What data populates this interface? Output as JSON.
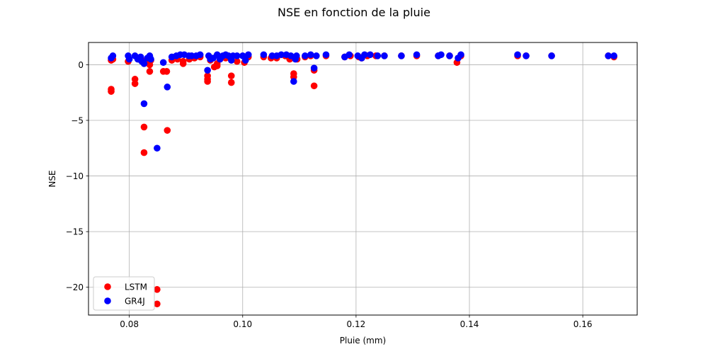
{
  "chart_data": {
    "type": "scatter",
    "title": "NSE en fonction de la pluie",
    "xlabel": "Pluie (mm)",
    "ylabel": "NSE",
    "xlim": [
      0.0728,
      0.1696
    ],
    "ylim": [
      -22.5,
      2.0
    ],
    "xticks": [
      0.08,
      0.1,
      0.12,
      0.14,
      0.16
    ],
    "xtick_labels": [
      "0.08",
      "0.10",
      "0.12",
      "0.14",
      "0.16"
    ],
    "yticks": [
      -20,
      -15,
      -10,
      -5,
      0
    ],
    "ytick_labels": [
      "−20",
      "−15",
      "−10",
      "−5",
      "0"
    ],
    "grid": true,
    "legend_position": "lower-left",
    "series": [
      {
        "name": "LSTM",
        "color": "#ff0000",
        "points": [
          [
            0.0768,
            0.4
          ],
          [
            0.0768,
            -2.2
          ],
          [
            0.0768,
            -2.4
          ],
          [
            0.0771,
            0.5
          ],
          [
            0.0798,
            0.3
          ],
          [
            0.081,
            -1.3
          ],
          [
            0.081,
            -1.7
          ],
          [
            0.0816,
            0.5
          ],
          [
            0.0822,
            0.4
          ],
          [
            0.0826,
            -5.6
          ],
          [
            0.0826,
            -7.9
          ],
          [
            0.0832,
            0.3
          ],
          [
            0.0836,
            0.0
          ],
          [
            0.0836,
            -0.6
          ],
          [
            0.0838,
            0.4
          ],
          [
            0.0849,
            -20.2
          ],
          [
            0.0849,
            -21.5
          ],
          [
            0.086,
            -0.6
          ],
          [
            0.0866,
            -0.6
          ],
          [
            0.0867,
            -5.9
          ],
          [
            0.0875,
            0.4
          ],
          [
            0.0885,
            0.5
          ],
          [
            0.0895,
            0.1
          ],
          [
            0.0895,
            0.3
          ],
          [
            0.0906,
            0.5
          ],
          [
            0.0915,
            0.6
          ],
          [
            0.0925,
            0.7
          ],
          [
            0.0938,
            -1.0
          ],
          [
            0.0938,
            -1.3
          ],
          [
            0.0938,
            -1.5
          ],
          [
            0.0943,
            0.4
          ],
          [
            0.095,
            -0.2
          ],
          [
            0.0955,
            0.1
          ],
          [
            0.0955,
            -0.1
          ],
          [
            0.096,
            0.5
          ],
          [
            0.097,
            0.6
          ],
          [
            0.098,
            -1.0
          ],
          [
            0.098,
            -1.6
          ],
          [
            0.099,
            0.3
          ],
          [
            0.1003,
            0.2
          ],
          [
            0.101,
            0.7
          ],
          [
            0.1037,
            0.7
          ],
          [
            0.105,
            0.6
          ],
          [
            0.106,
            0.6
          ],
          [
            0.1075,
            0.8
          ],
          [
            0.1083,
            0.5
          ],
          [
            0.109,
            -0.8
          ],
          [
            0.109,
            -1.1
          ],
          [
            0.1096,
            0.5
          ],
          [
            0.111,
            0.7
          ],
          [
            0.112,
            0.8
          ],
          [
            0.1126,
            -0.5
          ],
          [
            0.1126,
            -1.9
          ],
          [
            0.1147,
            0.8
          ],
          [
            0.118,
            0.7
          ],
          [
            0.119,
            0.8
          ],
          [
            0.1205,
            0.7
          ],
          [
            0.121,
            0.6
          ],
          [
            0.122,
            0.8
          ],
          [
            0.1235,
            0.8
          ],
          [
            0.125,
            0.8
          ],
          [
            0.128,
            0.8
          ],
          [
            0.1307,
            0.8
          ],
          [
            0.1345,
            0.8
          ],
          [
            0.1365,
            0.8
          ],
          [
            0.1378,
            0.2
          ],
          [
            0.1385,
            0.8
          ],
          [
            0.1485,
            0.8
          ],
          [
            0.15,
            0.8
          ],
          [
            0.1545,
            0.8
          ],
          [
            0.1645,
            0.8
          ],
          [
            0.1655,
            0.7
          ]
        ]
      },
      {
        "name": "GR4J",
        "color": "#0000ff",
        "points": [
          [
            0.0768,
            0.6
          ],
          [
            0.0771,
            0.8
          ],
          [
            0.0798,
            0.8
          ],
          [
            0.08,
            0.5
          ],
          [
            0.081,
            0.8
          ],
          [
            0.0815,
            0.5
          ],
          [
            0.082,
            0.7
          ],
          [
            0.0822,
            0.3
          ],
          [
            0.0826,
            -3.5
          ],
          [
            0.0826,
            0.1
          ],
          [
            0.0832,
            0.6
          ],
          [
            0.0836,
            0.8
          ],
          [
            0.0838,
            0.5
          ],
          [
            0.0849,
            -7.5
          ],
          [
            0.086,
            0.2
          ],
          [
            0.0867,
            -2.0
          ],
          [
            0.0875,
            0.7
          ],
          [
            0.0883,
            0.8
          ],
          [
            0.089,
            0.9
          ],
          [
            0.0897,
            0.9
          ],
          [
            0.0905,
            0.8
          ],
          [
            0.091,
            0.8
          ],
          [
            0.0918,
            0.8
          ],
          [
            0.0925,
            0.9
          ],
          [
            0.0938,
            -0.5
          ],
          [
            0.094,
            0.8
          ],
          [
            0.0943,
            0.5
          ],
          [
            0.0948,
            0.6
          ],
          [
            0.0955,
            0.9
          ],
          [
            0.096,
            0.5
          ],
          [
            0.0965,
            0.8
          ],
          [
            0.097,
            0.9
          ],
          [
            0.0975,
            0.8
          ],
          [
            0.098,
            0.4
          ],
          [
            0.0983,
            0.8
          ],
          [
            0.099,
            0.8
          ],
          [
            0.1,
            0.8
          ],
          [
            0.1005,
            0.4
          ],
          [
            0.101,
            0.9
          ],
          [
            0.1037,
            0.9
          ],
          [
            0.1052,
            0.8
          ],
          [
            0.106,
            0.8
          ],
          [
            0.1068,
            0.9
          ],
          [
            0.1077,
            0.9
          ],
          [
            0.1085,
            0.8
          ],
          [
            0.109,
            -1.5
          ],
          [
            0.1093,
            0.5
          ],
          [
            0.1095,
            0.8
          ],
          [
            0.111,
            0.8
          ],
          [
            0.112,
            0.9
          ],
          [
            0.1126,
            -0.3
          ],
          [
            0.113,
            0.8
          ],
          [
            0.1147,
            0.9
          ],
          [
            0.118,
            0.7
          ],
          [
            0.1188,
            0.9
          ],
          [
            0.1203,
            0.8
          ],
          [
            0.121,
            0.6
          ],
          [
            0.1215,
            0.9
          ],
          [
            0.1225,
            0.9
          ],
          [
            0.1238,
            0.8
          ],
          [
            0.125,
            0.8
          ],
          [
            0.128,
            0.8
          ],
          [
            0.1307,
            0.9
          ],
          [
            0.1345,
            0.8
          ],
          [
            0.135,
            0.9
          ],
          [
            0.1365,
            0.8
          ],
          [
            0.138,
            0.6
          ],
          [
            0.1385,
            0.9
          ],
          [
            0.1485,
            0.9
          ],
          [
            0.15,
            0.8
          ],
          [
            0.1545,
            0.8
          ],
          [
            0.1645,
            0.8
          ],
          [
            0.1655,
            0.8
          ]
        ]
      }
    ]
  }
}
